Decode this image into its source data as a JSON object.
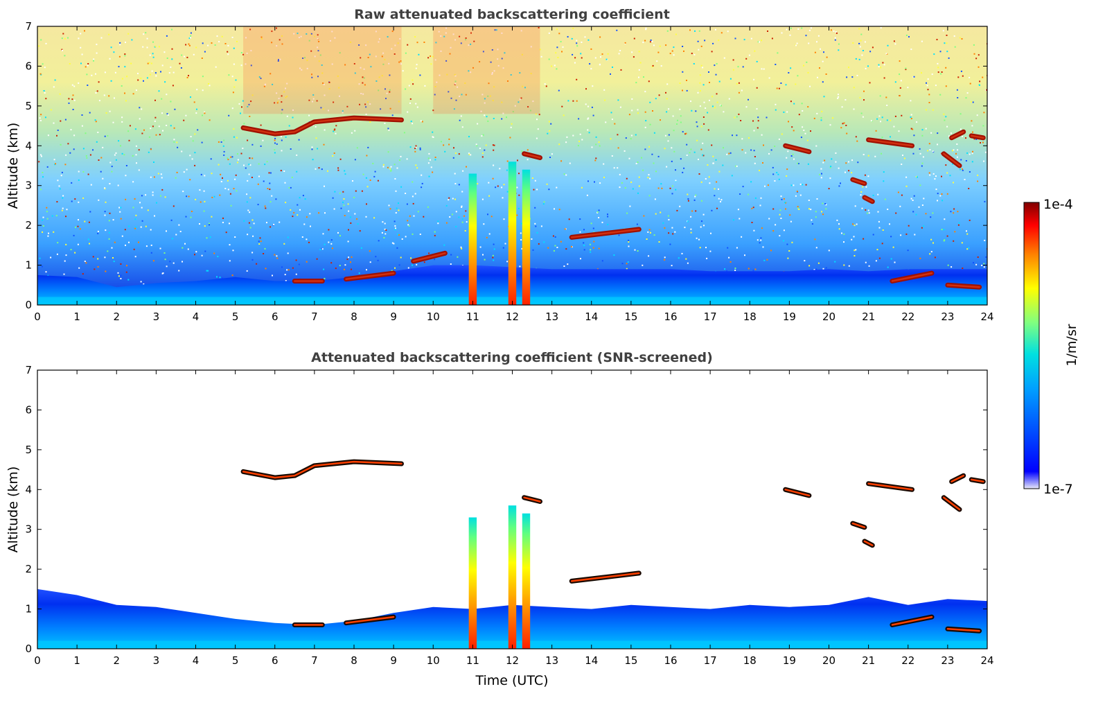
{
  "chart_data": [
    {
      "type": "heatmap",
      "title": "Raw attenuated backscattering coefficient",
      "xlabel": "",
      "ylabel": "Altitude (km)",
      "xlim": [
        0,
        24
      ],
      "ylim": [
        0,
        7
      ],
      "x_ticks": [
        "0",
        "1",
        "2",
        "3",
        "4",
        "5",
        "6",
        "7",
        "8",
        "9",
        "10",
        "11",
        "12",
        "13",
        "14",
        "15",
        "16",
        "17",
        "18",
        "19",
        "20",
        "21",
        "22",
        "23",
        "24"
      ],
      "y_ticks": [
        "0",
        "1",
        "2",
        "3",
        "4",
        "5",
        "6",
        "7"
      ],
      "grid": false,
      "colorscale": "jet",
      "log_scale": true,
      "boundary_layer_top_km": [
        [
          0,
          0.75
        ],
        [
          1,
          0.7
        ],
        [
          2,
          0.45
        ],
        [
          3,
          0.55
        ],
        [
          4,
          0.6
        ],
        [
          5,
          0.7
        ],
        [
          6,
          0.6
        ],
        [
          7,
          0.6
        ],
        [
          8,
          0.7
        ],
        [
          9,
          0.85
        ],
        [
          10,
          1.0
        ],
        [
          11,
          1.0
        ],
        [
          12,
          0.95
        ],
        [
          13,
          0.9
        ],
        [
          14,
          0.9
        ],
        [
          15,
          0.9
        ],
        [
          16,
          0.9
        ],
        [
          17,
          0.85
        ],
        [
          18,
          0.85
        ],
        [
          19,
          0.85
        ],
        [
          20,
          0.9
        ],
        [
          21,
          0.85
        ],
        [
          22,
          0.9
        ],
        [
          23,
          0.9
        ],
        [
          24,
          0.9
        ]
      ],
      "cloud_layers": [
        {
          "x": [
            5.2,
            6.0,
            6.5,
            7.0,
            8.0,
            9.2
          ],
          "y": [
            4.45,
            4.3,
            4.35,
            4.6,
            4.7,
            4.65
          ]
        },
        {
          "x": [
            6.5,
            7.2
          ],
          "y": [
            0.6,
            0.6
          ]
        },
        {
          "x": [
            7.8,
            9.0
          ],
          "y": [
            0.65,
            0.8
          ]
        },
        {
          "x": [
            9.5,
            10.3
          ],
          "y": [
            1.1,
            1.3
          ]
        },
        {
          "x": [
            12.3,
            12.7
          ],
          "y": [
            3.8,
            3.7
          ]
        },
        {
          "x": [
            13.5,
            15.2
          ],
          "y": [
            1.7,
            1.9
          ]
        },
        {
          "x": [
            18.9,
            19.5
          ],
          "y": [
            4.0,
            3.85
          ]
        },
        {
          "x": [
            21.0,
            22.1
          ],
          "y": [
            4.15,
            4.0
          ]
        },
        {
          "x": [
            20.6,
            20.9
          ],
          "y": [
            3.15,
            3.05
          ]
        },
        {
          "x": [
            20.9,
            21.1
          ],
          "y": [
            2.7,
            2.6
          ]
        },
        {
          "x": [
            21.6,
            22.6
          ],
          "y": [
            0.6,
            0.8
          ]
        },
        {
          "x": [
            22.9,
            23.3
          ],
          "y": [
            3.8,
            3.5
          ]
        },
        {
          "x": [
            23.1,
            23.4
          ],
          "y": [
            4.2,
            4.35
          ]
        },
        {
          "x": [
            23.6,
            23.9
          ],
          "y": [
            4.25,
            4.2
          ]
        },
        {
          "x": [
            23.0,
            23.8
          ],
          "y": [
            0.5,
            0.45
          ]
        }
      ],
      "precipitation_columns": [
        {
          "x": 11.0,
          "top_km": 3.3
        },
        {
          "x": 12.0,
          "top_km": 3.6
        },
        {
          "x": 12.35,
          "top_km": 3.4
        }
      ]
    },
    {
      "type": "heatmap",
      "title": "Attenuated backscattering coefficient (SNR-screened)",
      "xlabel": "Time (UTC)",
      "ylabel": "Altitude (km)",
      "xlim": [
        0,
        24
      ],
      "ylim": [
        0,
        7
      ],
      "x_ticks": [
        "0",
        "1",
        "2",
        "3",
        "4",
        "5",
        "6",
        "7",
        "8",
        "9",
        "10",
        "11",
        "12",
        "13",
        "14",
        "15",
        "16",
        "17",
        "18",
        "19",
        "20",
        "21",
        "22",
        "23",
        "24"
      ],
      "y_ticks": [
        "0",
        "1",
        "2",
        "3",
        "4",
        "5",
        "6",
        "7"
      ],
      "grid": false,
      "colorscale": "jet",
      "log_scale": true,
      "boundary_layer_top_km": [
        [
          0,
          1.5
        ],
        [
          1,
          1.35
        ],
        [
          2,
          1.1
        ],
        [
          3,
          1.05
        ],
        [
          4,
          0.9
        ],
        [
          5,
          0.75
        ],
        [
          6,
          0.65
        ],
        [
          7,
          0.6
        ],
        [
          8,
          0.7
        ],
        [
          9,
          0.9
        ],
        [
          10,
          1.05
        ],
        [
          11,
          1.0
        ],
        [
          12,
          1.1
        ],
        [
          13,
          1.05
        ],
        [
          14,
          1.0
        ],
        [
          15,
          1.1
        ],
        [
          16,
          1.05
        ],
        [
          17,
          1.0
        ],
        [
          18,
          1.1
        ],
        [
          19,
          1.05
        ],
        [
          20,
          1.1
        ],
        [
          21,
          1.3
        ],
        [
          22,
          1.1
        ],
        [
          23,
          1.25
        ],
        [
          24,
          1.2
        ]
      ],
      "cloud_layers": [
        {
          "x": [
            5.2,
            6.0,
            6.5,
            7.0,
            8.0,
            9.2
          ],
          "y": [
            4.45,
            4.3,
            4.35,
            4.6,
            4.7,
            4.65
          ]
        },
        {
          "x": [
            6.5,
            7.2
          ],
          "y": [
            0.6,
            0.6
          ]
        },
        {
          "x": [
            7.8,
            9.0
          ],
          "y": [
            0.65,
            0.8
          ]
        },
        {
          "x": [
            12.3,
            12.7
          ],
          "y": [
            3.8,
            3.7
          ]
        },
        {
          "x": [
            13.5,
            15.2
          ],
          "y": [
            1.7,
            1.9
          ]
        },
        {
          "x": [
            18.9,
            19.5
          ],
          "y": [
            4.0,
            3.85
          ]
        },
        {
          "x": [
            21.0,
            22.1
          ],
          "y": [
            4.15,
            4.0
          ]
        },
        {
          "x": [
            20.6,
            20.9
          ],
          "y": [
            3.15,
            3.05
          ]
        },
        {
          "x": [
            20.9,
            21.1
          ],
          "y": [
            2.7,
            2.6
          ]
        },
        {
          "x": [
            21.6,
            22.6
          ],
          "y": [
            0.6,
            0.8
          ]
        },
        {
          "x": [
            22.9,
            23.3
          ],
          "y": [
            3.8,
            3.5
          ]
        },
        {
          "x": [
            23.1,
            23.4
          ],
          "y": [
            4.2,
            4.35
          ]
        },
        {
          "x": [
            23.6,
            23.9
          ],
          "y": [
            4.25,
            4.2
          ]
        },
        {
          "x": [
            23.0,
            23.8
          ],
          "y": [
            0.5,
            0.45
          ]
        }
      ],
      "precipitation_columns": [
        {
          "x": 11.0,
          "top_km": 3.3
        },
        {
          "x": 12.0,
          "top_km": 3.6
        },
        {
          "x": 12.35,
          "top_km": 3.4
        }
      ]
    }
  ],
  "colorbar": {
    "label": "1/m/sr",
    "max_label": "1e-4",
    "min_label": "1e-7",
    "range": [
      1e-07,
      0.0001
    ],
    "colors": [
      "#e8e8f8",
      "#0000ff",
      "#00a0ff",
      "#00e0e0",
      "#80ff80",
      "#ffff00",
      "#ff8000",
      "#ff0000",
      "#800000"
    ]
  }
}
